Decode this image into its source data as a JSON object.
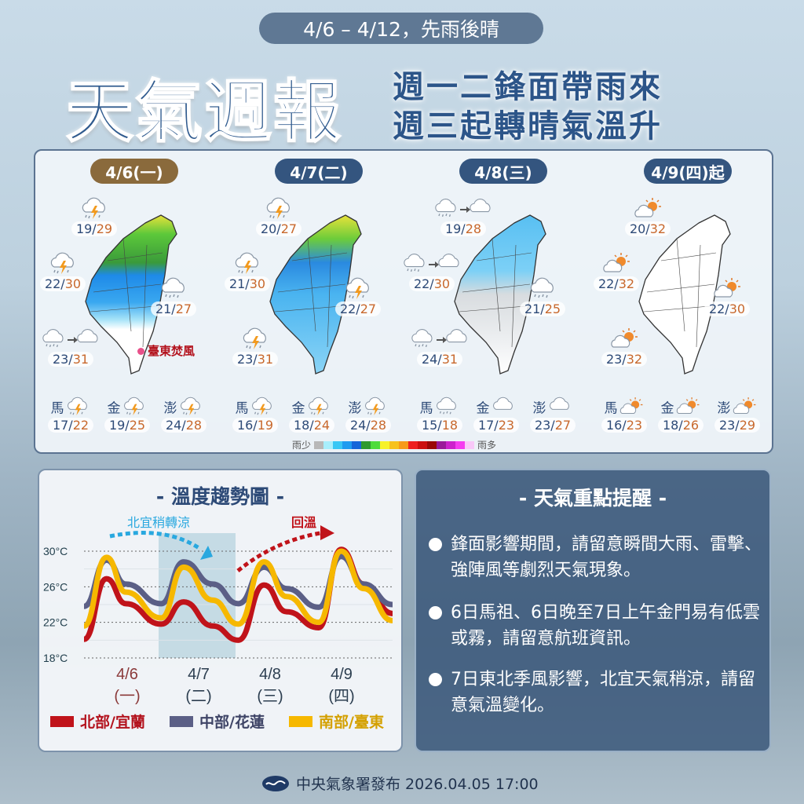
{
  "header": {
    "range": "4/6 – 4/12，先雨後晴",
    "title": "天氣週報",
    "subtitle_1": "週一二鋒面帶雨來",
    "subtitle_2": "週三起轉晴氣溫升"
  },
  "colors": {
    "pill_first": "#8a6a3c",
    "pill": "#34557f",
    "north": "#c0131a",
    "central": "#5b5f86",
    "south": "#f6b800",
    "panel_dark": "#37547a"
  },
  "days": [
    {
      "date": "4/6(一)",
      "alert": "臺東焚風",
      "rain_map": "heavy-north",
      "regions": [
        {
          "icon": "thunder-rain-icon",
          "low": "19",
          "high": "29"
        },
        {
          "icon": "thunder-rain-icon",
          "low": "22",
          "high": "30"
        },
        {
          "icon": "rain-icon",
          "low": "21",
          "high": "27"
        },
        {
          "icon": "rain-to-cloudy-icon",
          "low": "23",
          "high": "31"
        }
      ],
      "islands": [
        {
          "name": "馬",
          "icon": "thunder-rain-icon",
          "low": "17",
          "high": "22"
        },
        {
          "name": "金",
          "icon": "thunder-rain-icon",
          "low": "19",
          "high": "25"
        },
        {
          "name": "澎",
          "icon": "thunder-rain-icon",
          "low": "24",
          "high": "28"
        }
      ]
    },
    {
      "date": "4/7(二)",
      "rain_map": "widespread",
      "regions": [
        {
          "icon": "thunder-rain-icon",
          "low": "20",
          "high": "27"
        },
        {
          "icon": "thunder-rain-icon",
          "low": "21",
          "high": "30"
        },
        {
          "icon": "thunder-rain-icon",
          "low": "22",
          "high": "27"
        },
        {
          "icon": "thunder-rain-icon",
          "low": "23",
          "high": "31"
        }
      ],
      "islands": [
        {
          "name": "馬",
          "icon": "thunder-rain-icon",
          "low": "16",
          "high": "19"
        },
        {
          "name": "金",
          "icon": "thunder-rain-icon",
          "low": "18",
          "high": "24"
        },
        {
          "name": "澎",
          "icon": "thunder-rain-icon",
          "low": "24",
          "high": "28"
        }
      ]
    },
    {
      "date": "4/8(三)",
      "rain_map": "light-north",
      "regions": [
        {
          "icon": "rain-to-cloudy-icon",
          "low": "19",
          "high": "28"
        },
        {
          "icon": "rain-to-cloudy-icon",
          "low": "22",
          "high": "30"
        },
        {
          "icon": "rain-icon",
          "low": "21",
          "high": "25"
        },
        {
          "icon": "rain-to-cloudy-icon",
          "low": "24",
          "high": "31"
        }
      ],
      "islands": [
        {
          "name": "馬",
          "icon": "rain-icon",
          "low": "15",
          "high": "18"
        },
        {
          "name": "金",
          "icon": "cloudy-icon",
          "low": "17",
          "high": "23"
        },
        {
          "name": "澎",
          "icon": "cloudy-icon",
          "low": "23",
          "high": "27"
        }
      ]
    },
    {
      "date": "4/9(四)起",
      "rain_map": "dry",
      "regions": [
        {
          "icon": "sun-cloud-icon",
          "low": "20",
          "high": "32"
        },
        {
          "icon": "sun-cloud-icon",
          "low": "22",
          "high": "32"
        },
        {
          "icon": "sun-cloud-icon",
          "low": "22",
          "high": "30"
        },
        {
          "icon": "sun-cloud-icon",
          "low": "23",
          "high": "32"
        }
      ],
      "islands": [
        {
          "name": "馬",
          "icon": "sun-cloud-icon",
          "low": "16",
          "high": "23"
        },
        {
          "name": "金",
          "icon": "sun-cloud-icon",
          "low": "18",
          "high": "26"
        },
        {
          "name": "澎",
          "icon": "sun-cloud-icon",
          "low": "23",
          "high": "29"
        }
      ]
    }
  ],
  "rain_legend": {
    "low": "雨少",
    "high": "雨多",
    "colors": [
      "#b8b8b8",
      "#a8eefc",
      "#38c7f5",
      "#1e9cf0",
      "#1566d9",
      "#2e9a2e",
      "#4ddc3a",
      "#f7f22a",
      "#f7c21e",
      "#f79a1a",
      "#ee2020",
      "#cc1010",
      "#9a0808",
      "#9a1a9a",
      "#cc22cc",
      "#f53cf0",
      "#f8c8f8"
    ]
  },
  "chart_data": {
    "type": "line",
    "title": "- 溫度趨勢圖 -",
    "ylim": [
      18,
      30
    ],
    "yticks": [
      "30°C",
      "26°C",
      "22°C",
      "18°C"
    ],
    "grid": true,
    "legend": "bottom",
    "x": [
      "4/6 00",
      "4/6 07",
      "4/6 13",
      "4/7 00",
      "4/7 07",
      "4/7 16",
      "4/8 00",
      "4/8 08",
      "4/8 15",
      "4/9 01",
      "4/9 08",
      "4/9 15",
      "4/10 00"
    ],
    "categories": [
      {
        "date": "4/6",
        "weekday": "(一)"
      },
      {
        "date": "4/7",
        "weekday": "(二)"
      },
      {
        "date": "4/8",
        "weekday": "(三)"
      },
      {
        "date": "4/9",
        "weekday": "(四)"
      }
    ],
    "highlight": "4/7",
    "series": [
      {
        "name": "北部/宜蘭",
        "color": "#c0131a",
        "values": [
          20.1,
          26.9,
          24.1,
          21.8,
          24.3,
          21.6,
          20.0,
          26.2,
          23.2,
          21.4,
          30.2,
          26.3,
          23.0
        ]
      },
      {
        "name": "中部/花蓮",
        "color": "#5b5f86",
        "values": [
          23.8,
          29.0,
          26.3,
          24.1,
          28.8,
          26.3,
          24.1,
          28.2,
          25.8,
          23.7,
          29.4,
          26.3,
          24.0
        ]
      },
      {
        "name": "南部/臺東",
        "color": "#f6b800",
        "values": [
          21.6,
          29.3,
          25.4,
          22.5,
          28.2,
          24.5,
          21.8,
          28.8,
          24.9,
          22.0,
          30.0,
          25.8,
          22.2
        ]
      }
    ],
    "annotations": [
      {
        "text": "北宜稍轉涼",
        "color": "#29a8df"
      },
      {
        "text": "回溫",
        "color": "#c0131a"
      }
    ]
  },
  "tips": {
    "title": "- 天氣重點提醒 -",
    "items": [
      "鋒面影響期間，請留意瞬間大雨、雷擊、強陣風等劇烈天氣現象。",
      "6日馬祖、6日晚至7日上午金門易有低雲或霧，請留意航班資訊。",
      "7日東北季風影響，北宜天氣稍涼，請留意氣溫變化。"
    ]
  },
  "footer": {
    "text": "中央氣象署發布 2026.04.05 17:00"
  }
}
